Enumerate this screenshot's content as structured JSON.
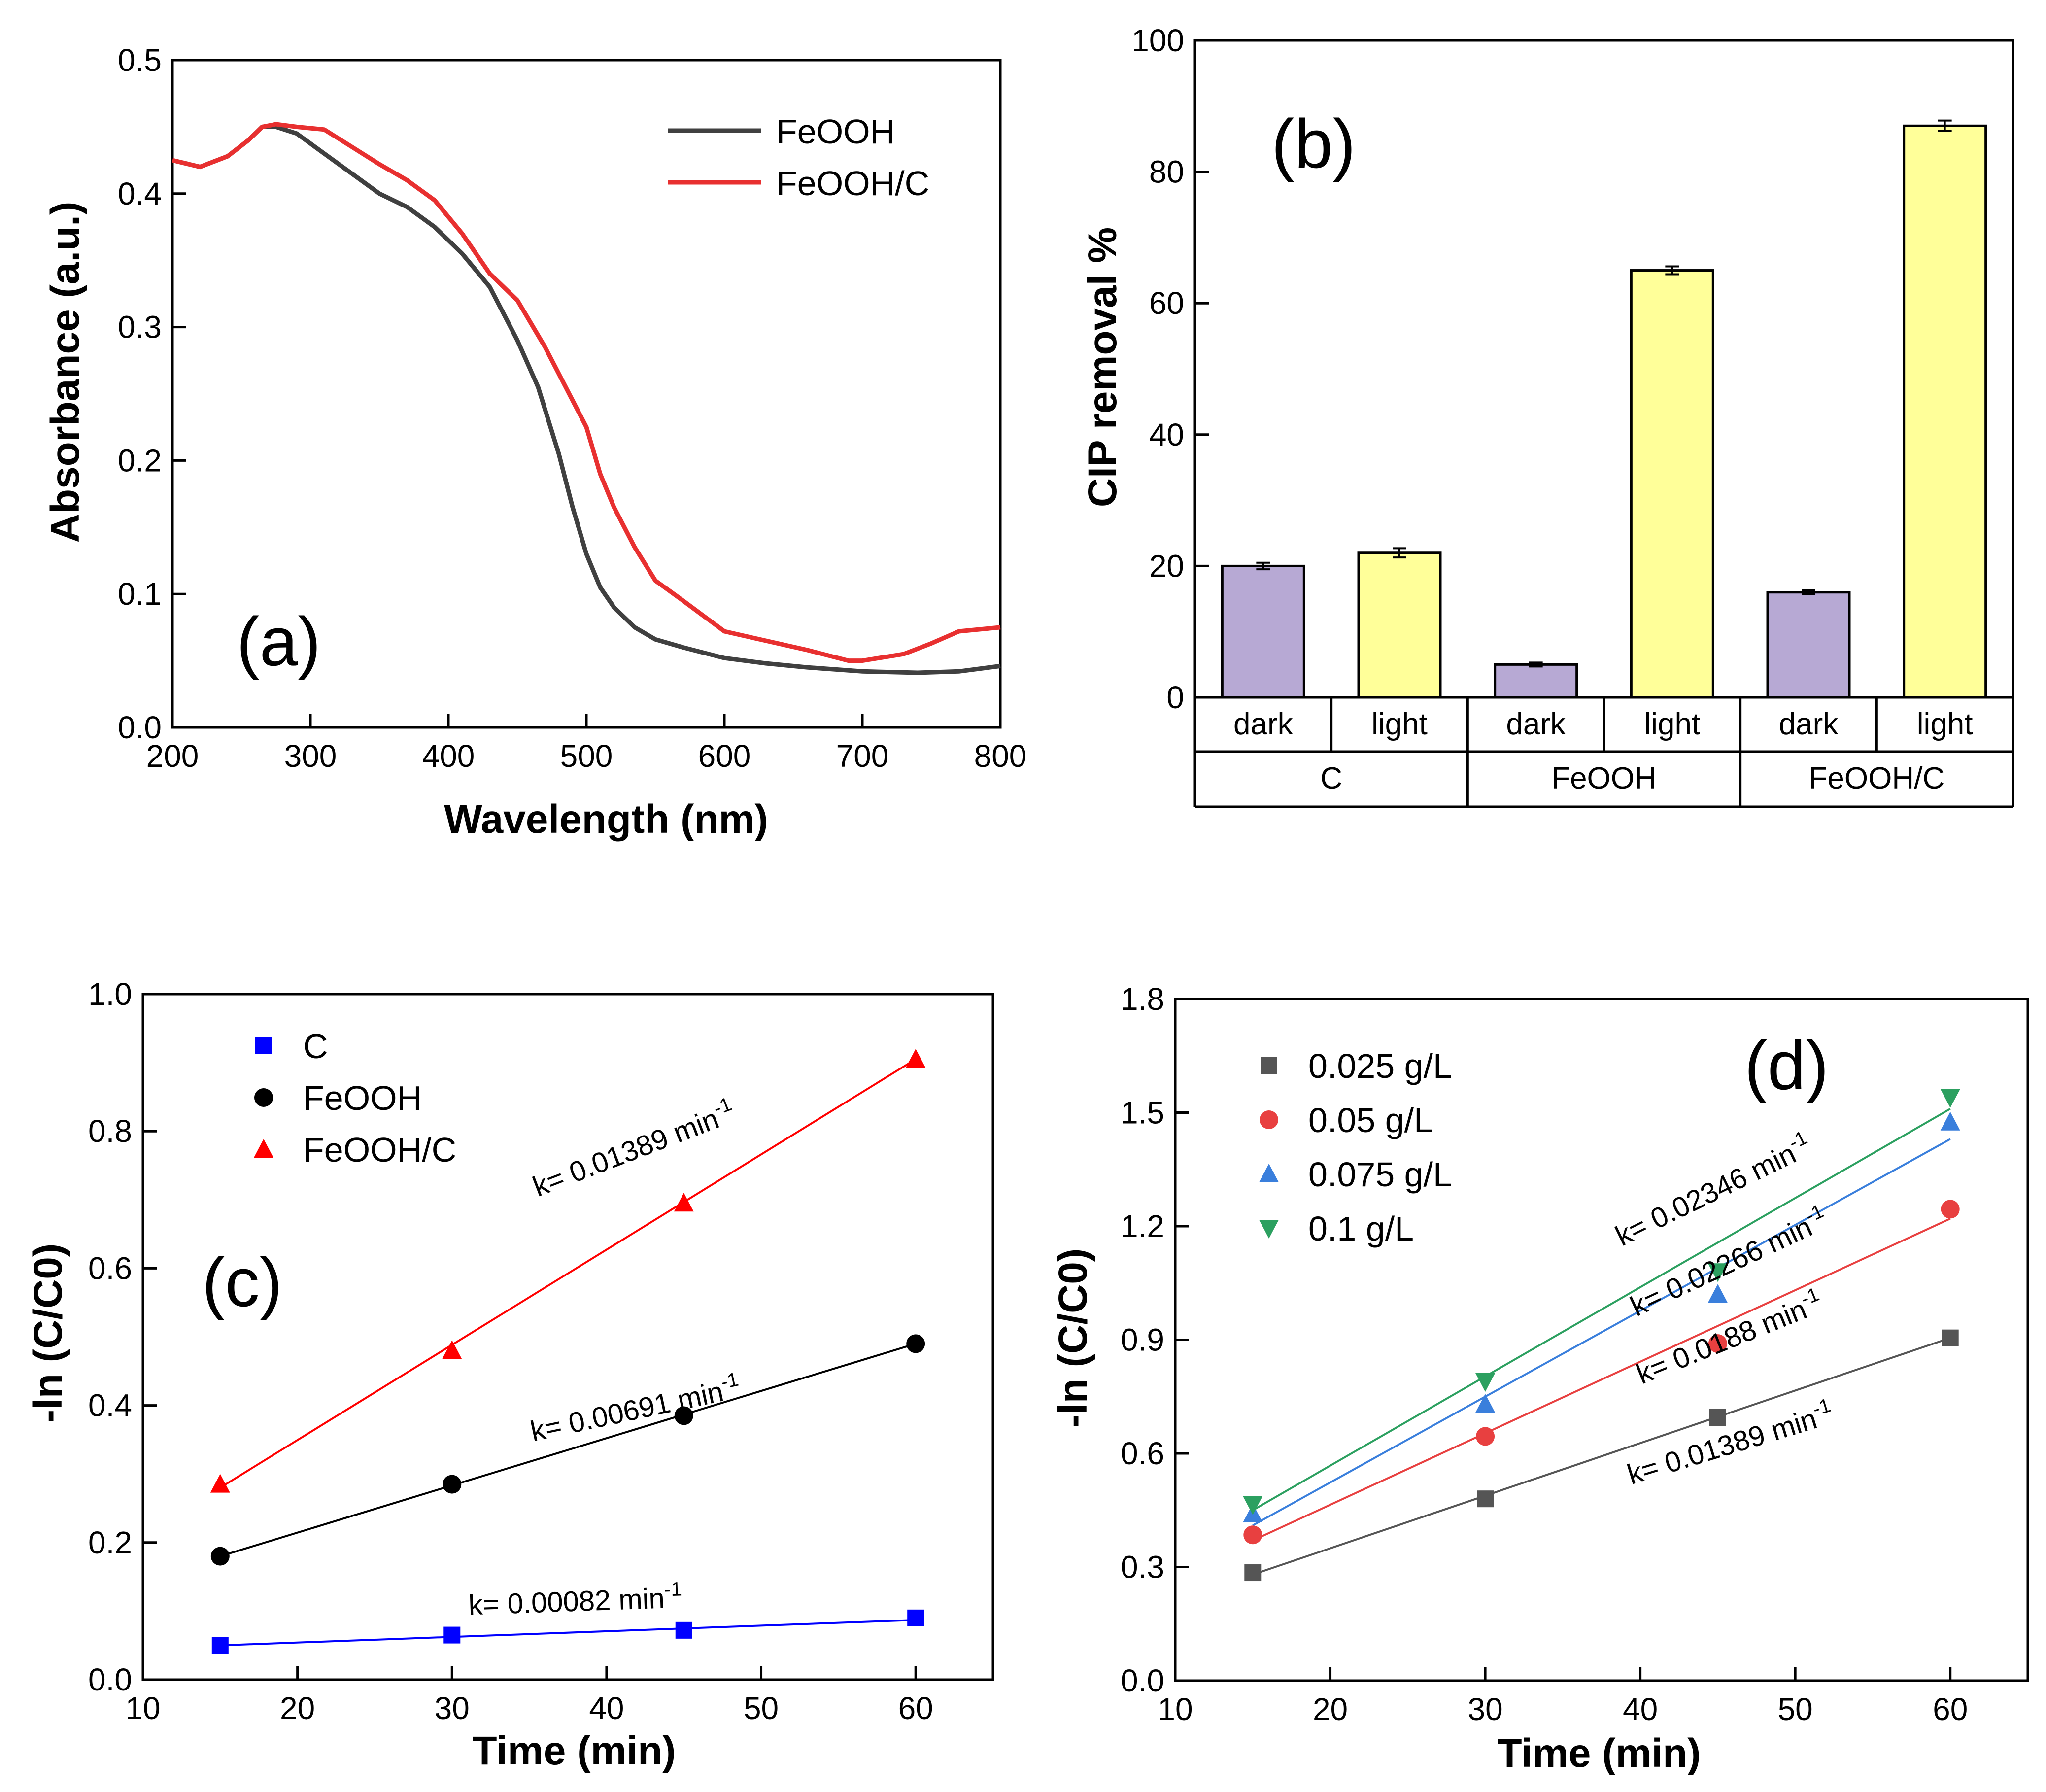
{
  "chart_data": [
    {
      "id": "a",
      "panel_label": "(a)",
      "type": "line",
      "xlabel": "Wavelength (nm)",
      "ylabel": "Absorbance (a.u.)",
      "xlim": [
        200,
        800
      ],
      "ylim": [
        0.0,
        0.5
      ],
      "xticks": [
        "200",
        "300",
        "400",
        "500",
        "600",
        "700",
        "800"
      ],
      "yticks": [
        "0.0",
        "0.1",
        "0.2",
        "0.3",
        "0.4",
        "0.5"
      ],
      "legend_position": "top-right",
      "series": [
        {
          "name": "FeOOH",
          "color": "#404040",
          "x": [
            200,
            220,
            240,
            255,
            265,
            275,
            290,
            310,
            330,
            350,
            370,
            390,
            410,
            430,
            450,
            465,
            480,
            490,
            500,
            510,
            520,
            535,
            550,
            570,
            600,
            630,
            660,
            700,
            740,
            770,
            800
          ],
          "y": [
            0.425,
            0.42,
            0.428,
            0.44,
            0.45,
            0.45,
            0.445,
            0.43,
            0.415,
            0.4,
            0.39,
            0.375,
            0.355,
            0.33,
            0.29,
            0.255,
            0.205,
            0.165,
            0.13,
            0.105,
            0.09,
            0.075,
            0.066,
            0.06,
            0.052,
            0.048,
            0.045,
            0.042,
            0.041,
            0.042,
            0.046
          ]
        },
        {
          "name": "FeOOH/C",
          "color": "#e83030",
          "x": [
            200,
            220,
            240,
            255,
            265,
            275,
            290,
            310,
            330,
            350,
            370,
            390,
            410,
            430,
            450,
            470,
            490,
            500,
            510,
            520,
            535,
            550,
            570,
            600,
            630,
            660,
            690,
            700,
            730,
            750,
            770,
            800
          ],
          "y": [
            0.425,
            0.42,
            0.428,
            0.44,
            0.45,
            0.452,
            0.45,
            0.448,
            0.435,
            0.422,
            0.41,
            0.395,
            0.37,
            0.34,
            0.32,
            0.285,
            0.245,
            0.225,
            0.19,
            0.165,
            0.135,
            0.11,
            0.095,
            0.072,
            0.065,
            0.058,
            0.05,
            0.05,
            0.055,
            0.063,
            0.072,
            0.075
          ]
        }
      ]
    },
    {
      "id": "b",
      "panel_label": "(b)",
      "type": "bar",
      "ylabel": "CIP removal %",
      "ylim": [
        0,
        100
      ],
      "yticks": [
        "0",
        "20",
        "40",
        "60",
        "80",
        "100"
      ],
      "categories": [
        "dark",
        "light",
        "dark",
        "light",
        "dark",
        "light"
      ],
      "groups": [
        "C",
        "FeOOH",
        "FeOOH/C"
      ],
      "values": [
        20,
        22,
        5,
        65,
        16,
        87
      ],
      "errors": [
        0.5,
        0.7,
        0.3,
        0.6,
        0.3,
        0.8
      ],
      "bar_colors": [
        "#b7a9d4",
        "#ffff99",
        "#b7a9d4",
        "#ffff99",
        "#b7a9d4",
        "#ffff99"
      ]
    },
    {
      "id": "c",
      "panel_label": "(c)",
      "type": "scatter",
      "xlabel": "Time (min)",
      "ylabel": "-ln (C/C0)",
      "xlim": [
        10,
        65
      ],
      "ylim": [
        0.0,
        1.0
      ],
      "xticks": [
        "10",
        "20",
        "30",
        "40",
        "50",
        "60"
      ],
      "yticks": [
        "0.0",
        "0.2",
        "0.4",
        "0.6",
        "0.8",
        "1.0"
      ],
      "legend_position": "top-left",
      "series": [
        {
          "name": "C",
          "color": "#0000ff",
          "marker": "square",
          "x": [
            15,
            30,
            45,
            60
          ],
          "y": [
            0.05,
            0.065,
            0.072,
            0.09
          ],
          "fit": [
            0.05,
            0.087
          ]
        },
        {
          "name": "FeOOH",
          "color": "#000000",
          "marker": "circle",
          "x": [
            15,
            30,
            45,
            60
          ],
          "y": [
            0.18,
            0.285,
            0.385,
            0.49
          ],
          "fit": [
            0.18,
            0.49
          ]
        },
        {
          "name": "FeOOH/C",
          "color": "#ff0000",
          "marker": "triangle",
          "x": [
            15,
            30,
            45,
            60
          ],
          "y": [
            0.285,
            0.48,
            0.695,
            0.905
          ],
          "fit": [
            0.28,
            0.905
          ]
        }
      ],
      "annotations": [
        {
          "text": "k= 0.00082 min",
          "sup": "-1",
          "x": 38,
          "y": 0.1,
          "angle": -2
        },
        {
          "text": "k= 0.00691 min",
          "sup": "-1",
          "x": 42,
          "y": 0.38,
          "angle": -12
        },
        {
          "text": "k= 0.01389 min",
          "sup": "-1",
          "x": 42,
          "y": 0.76,
          "angle": -21
        }
      ]
    },
    {
      "id": "d",
      "panel_label": "(d)",
      "type": "scatter",
      "xlabel": "Time (min)",
      "ylabel": "-ln (C/C0)",
      "xlim": [
        10,
        65
      ],
      "ylim": [
        0.0,
        1.8
      ],
      "xticks": [
        "10",
        "20",
        "30",
        "40",
        "50",
        "60"
      ],
      "yticks": [
        "0.0",
        "0.3",
        "0.6",
        "0.9",
        "1.2",
        "1.5",
        "1.8"
      ],
      "legend_position": "top-left",
      "series": [
        {
          "name": "0.025 g/L",
          "color": "#555555",
          "marker": "square",
          "x": [
            15,
            30,
            45,
            60
          ],
          "y": [
            0.285,
            0.48,
            0.695,
            0.905
          ],
          "fit": [
            0.28,
            0.905
          ]
        },
        {
          "name": "0.05 g/L",
          "color": "#e84040",
          "marker": "circle",
          "x": [
            15,
            30,
            45,
            60
          ],
          "y": [
            0.385,
            0.645,
            0.89,
            1.245
          ],
          "fit": [
            0.37,
            1.22
          ]
        },
        {
          "name": "0.075 g/L",
          "color": "#3a7fdc",
          "marker": "triangle",
          "x": [
            15,
            30,
            45,
            60
          ],
          "y": [
            0.44,
            0.73,
            1.02,
            1.475
          ],
          "fit": [
            0.41,
            1.43
          ]
        },
        {
          "name": "0.1 g/L",
          "color": "#2ca060",
          "marker": "triangle-down",
          "x": [
            15,
            30,
            45,
            60
          ],
          "y": [
            0.465,
            0.79,
            1.08,
            1.54
          ],
          "fit": [
            0.45,
            1.51
          ]
        }
      ],
      "annotations": [
        {
          "text": "k= 0.01389 min",
          "sup": "-1",
          "x": 46,
          "y": 0.6,
          "angle": -17
        },
        {
          "text": "k= 0.0188 min",
          "sup": "-1",
          "x": 46,
          "y": 0.88,
          "angle": -22
        },
        {
          "text": "k= 0.02266 min",
          "sup": "-1",
          "x": 46,
          "y": 1.08,
          "angle": -25
        },
        {
          "text": "k= 0.02346 min",
          "sup": "-1",
          "x": 45,
          "y": 1.27,
          "angle": -26
        }
      ]
    }
  ]
}
